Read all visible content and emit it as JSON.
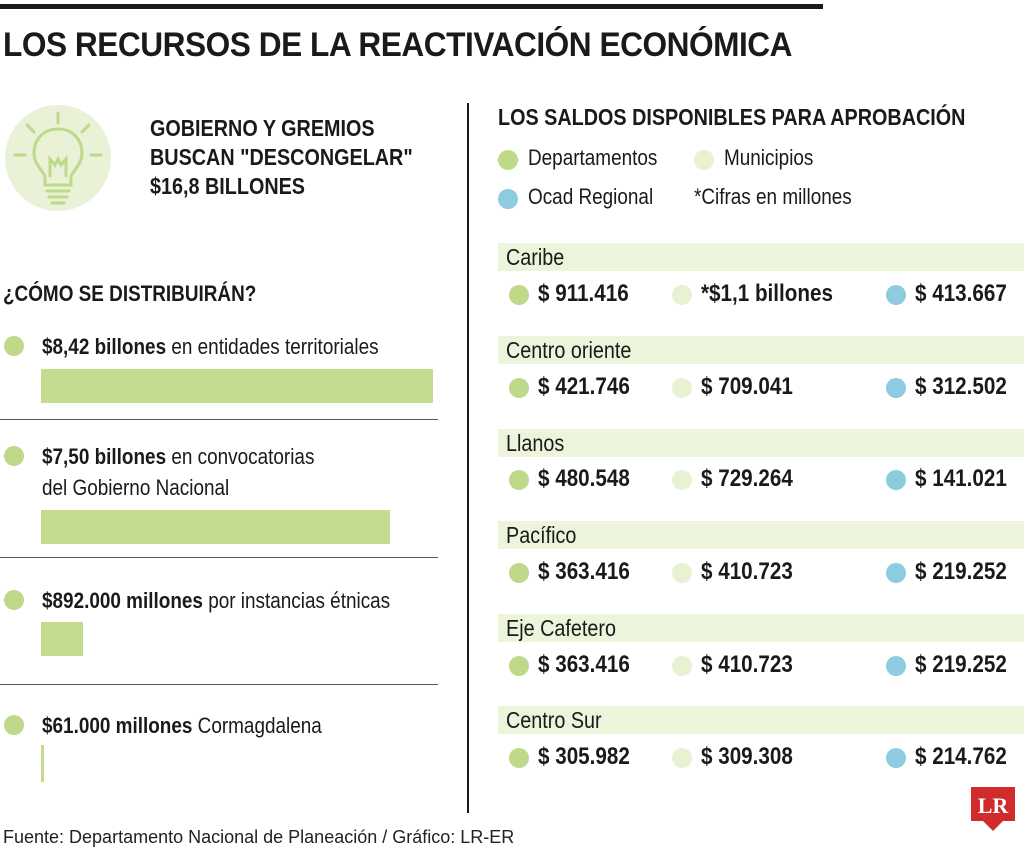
{
  "title": "LOS RECURSOS DE LA REACTIVACIÓN ECONÓMICA",
  "headline": [
    "GOBIERNO Y GREMIOS",
    "BUSCAN \"DESCONGELAR\"",
    "$16,8 BILLONES"
  ],
  "distribution_title": "¿CÓMO SE DISTRIBUIRÁN?",
  "balances_title": "LOS SALDOS DISPONIBLES PARA APROBACIÓN",
  "legend": {
    "departamentos": "Departamentos",
    "municipios": "Municipios",
    "ocad": "Ocad Regional",
    "note": "*Cifras en millones"
  },
  "colors": {
    "departamentos": "#bfd98a",
    "municipios": "#e8f1d2",
    "ocad": "#8ccbe0",
    "bars": "#c3dc8f"
  },
  "icons": {
    "headline": "lightbulb-icon",
    "logo": "lr-logo"
  },
  "source": "Fuente: Departamento Nacional de Planeación / Gráfico: LR-ER",
  "logo_text": "LR",
  "chart_data": [
    {
      "type": "bar",
      "title": "¿CÓMO SE DISTRIBUIRÁN?",
      "unit": "billones",
      "items": [
        {
          "amount": "$8,42 billones",
          "desc1": "en entidades territoriales",
          "desc2": "",
          "value": 8.42
        },
        {
          "amount": "$7,50 billones",
          "desc1": "en convocatorias",
          "desc2": "del Gobierno Nacional",
          "value": 7.5
        },
        {
          "amount": "$892.000 millones",
          "desc1": "por instancias étnicas",
          "desc2": "",
          "value": 0.892
        },
        {
          "amount": "$61.000 millones",
          "desc1": "Cormagdalena",
          "desc2": "",
          "value": 0.061
        }
      ]
    },
    {
      "type": "table",
      "title": "LOS SALDOS DISPONIBLES PARA APROBACIÓN",
      "columns": [
        "Departamentos",
        "Municipios",
        "Ocad Regional"
      ],
      "regions": [
        {
          "name": "Caribe",
          "dep": "$ 911.416",
          "mun": "*$1,1 billones",
          "ocad": "$ 413.667"
        },
        {
          "name": "Centro oriente",
          "dep": "$ 421.746",
          "mun": "$ 709.041",
          "ocad": "$ 312.502"
        },
        {
          "name": "Llanos",
          "dep": "$ 480.548",
          "mun": "$ 729.264",
          "ocad": "$ 141.021"
        },
        {
          "name": "Pacífico",
          "dep": "$ 363.416",
          "mun": "$ 410.723",
          "ocad": "$ 219.252"
        },
        {
          "name": "Eje Cafetero",
          "dep": "$ 363.416",
          "mun": "$ 410.723",
          "ocad": "$ 219.252"
        },
        {
          "name": "Centro Sur",
          "dep": "$ 305.982",
          "mun": "$ 309.308",
          "ocad": "$ 214.762"
        }
      ]
    }
  ]
}
